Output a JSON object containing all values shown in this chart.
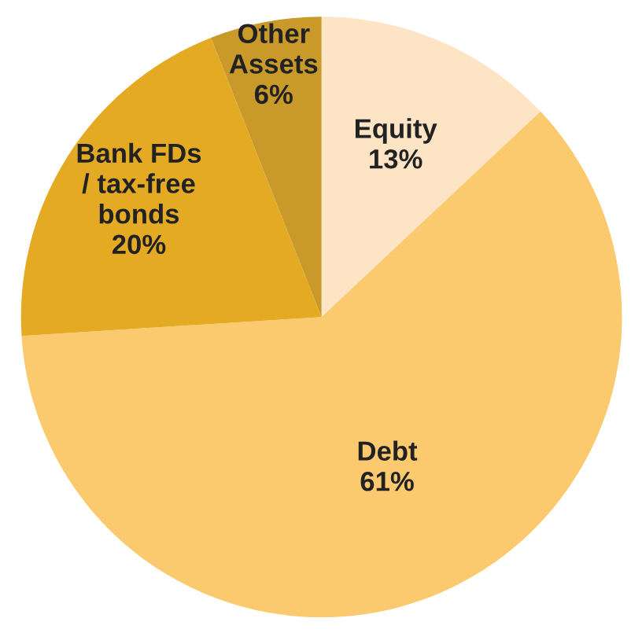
{
  "chart_data": {
    "type": "pie",
    "categories": [
      "Equity",
      "Debt",
      "Bank FDs\n/ tax-free\nbonds",
      "Other\nAssets"
    ],
    "values": [
      13,
      61,
      20,
      6
    ],
    "value_labels": [
      "13%",
      "61%",
      "20%",
      "6%"
    ],
    "colors": [
      "#fde4c4",
      "#fbc96e",
      "#e5aa24",
      "#c99a2a"
    ]
  }
}
